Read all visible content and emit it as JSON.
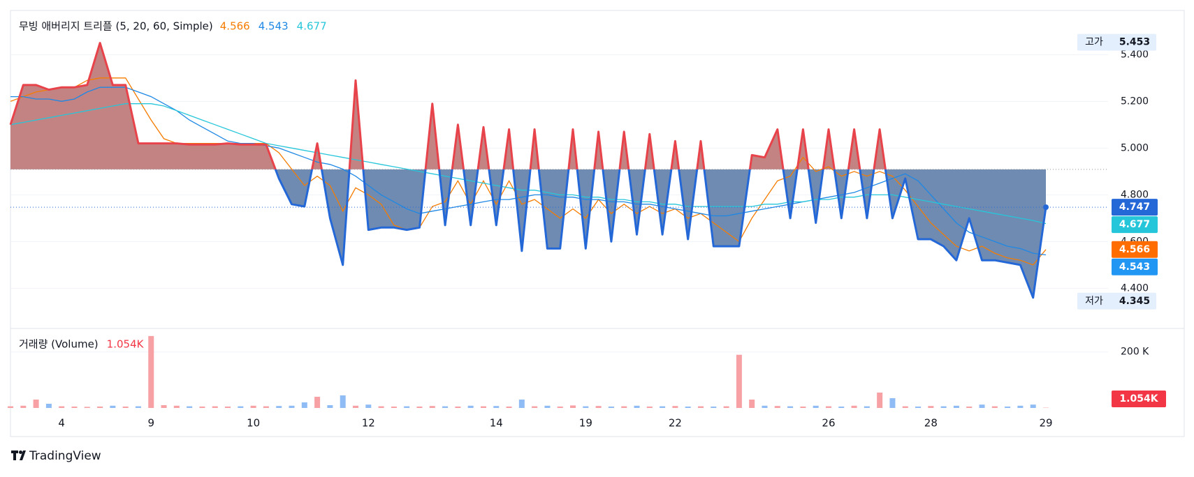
{
  "chart_data": {
    "type": "baseline",
    "categories": [
      null,
      null,
      null,
      null,
      "4",
      null,
      null,
      null,
      null,
      null,
      null,
      "9",
      null,
      null,
      null,
      null,
      null,
      null,
      null,
      "10",
      null,
      null,
      null,
      null,
      null,
      null,
      null,
      null,
      "12",
      null,
      null,
      null,
      null,
      null,
      null,
      null,
      null,
      null,
      "14",
      null,
      null,
      null,
      null,
      null,
      null,
      "19",
      null,
      null,
      null,
      null,
      null,
      null,
      "22",
      null,
      null,
      null,
      null,
      null,
      null,
      null,
      null,
      null,
      null,
      null,
      "26",
      null,
      null,
      null,
      null,
      null,
      null,
      null,
      "28",
      null,
      null,
      null,
      null,
      null,
      null,
      null,
      null,
      "29"
    ],
    "values": [
      5.1,
      5.27,
      5.27,
      5.25,
      5.26,
      5.26,
      5.27,
      5.45,
      5.27,
      5.27,
      5.02,
      5.02,
      5.02,
      5.02,
      5.015,
      5.015,
      5.015,
      5.02,
      5.015,
      5.015,
      5.015,
      4.87,
      4.76,
      4.75,
      5.02,
      4.7,
      4.5,
      5.29,
      4.65,
      4.66,
      4.66,
      4.65,
      4.66,
      5.19,
      4.67,
      5.1,
      4.67,
      5.09,
      4.67,
      5.08,
      4.56,
      5.08,
      4.57,
      4.57,
      5.08,
      4.57,
      5.07,
      4.6,
      5.07,
      4.63,
      5.06,
      4.63,
      5.03,
      4.61,
      5.03,
      4.58,
      4.58,
      4.58,
      4.97,
      4.96,
      5.08,
      4.7,
      5.08,
      4.68,
      5.08,
      4.7,
      5.08,
      4.7,
      5.08,
      4.7,
      4.87,
      4.61,
      4.61,
      4.58,
      4.52,
      4.7,
      4.52,
      4.52,
      4.51,
      4.5,
      4.36,
      4.747
    ],
    "baseline": 4.909,
    "line_up_color": "#e8434a",
    "line_down_color": "#2468d8",
    "fill_up_color": "#c38383",
    "fill_down_color": "#6f8bb1",
    "current_color": "#2468d8",
    "ylim": [
      4.234,
      5.586
    ],
    "yticks": [
      {
        "value": 4.4,
        "label": "4.400"
      },
      {
        "value": 4.6,
        "label": "4.600"
      },
      {
        "value": 4.8,
        "label": "4.800"
      },
      {
        "value": 5.0,
        "label": "5.000"
      },
      {
        "value": 5.2,
        "label": "5.200"
      },
      {
        "value": 5.4,
        "label": "5.400"
      }
    ],
    "grid": true,
    "high": {
      "label": "고가",
      "value": 5.453
    },
    "low": {
      "label": "저가",
      "value": 4.345
    },
    "ma": {
      "title": "무빙 애버리지 트리플 (5, 20, 60, Simple)",
      "series": [
        {
          "color": "#f57c00",
          "badge_color": "#ff6d00",
          "values": [
            5.2,
            5.22,
            5.24,
            5.25,
            5.26,
            5.26,
            5.29,
            5.3,
            5.3,
            5.3,
            5.21,
            5.12,
            5.04,
            5.02,
            5.02,
            5.02,
            5.02,
            5.02,
            5.02,
            5.02,
            5.02,
            4.98,
            4.91,
            4.84,
            4.88,
            4.84,
            4.73,
            4.83,
            4.8,
            4.76,
            4.67,
            4.65,
            4.66,
            4.75,
            4.77,
            4.86,
            4.76,
            4.86,
            4.76,
            4.86,
            4.76,
            4.78,
            4.74,
            4.7,
            4.74,
            4.7,
            4.78,
            4.72,
            4.76,
            4.72,
            4.75,
            4.72,
            4.74,
            4.7,
            4.72,
            4.68,
            4.64,
            4.6,
            4.7,
            4.78,
            4.86,
            4.88,
            4.96,
            4.9,
            4.92,
            4.88,
            4.9,
            4.88,
            4.9,
            4.88,
            4.82,
            4.75,
            4.68,
            4.63,
            4.58,
            4.56,
            4.58,
            4.55,
            4.53,
            4.52,
            4.5,
            4.566
          ]
        },
        {
          "color": "#1e88e5",
          "badge_color": "#2196f3",
          "values": [
            5.22,
            5.22,
            5.21,
            5.21,
            5.2,
            5.21,
            5.24,
            5.26,
            5.26,
            5.26,
            5.24,
            5.22,
            5.19,
            5.16,
            5.12,
            5.09,
            5.06,
            5.03,
            5.02,
            5.02,
            5.01,
            5.0,
            4.98,
            4.96,
            4.94,
            4.93,
            4.91,
            4.88,
            4.84,
            4.8,
            4.77,
            4.74,
            4.72,
            4.73,
            4.74,
            4.75,
            4.76,
            4.77,
            4.78,
            4.78,
            4.79,
            4.8,
            4.8,
            4.79,
            4.79,
            4.78,
            4.78,
            4.77,
            4.77,
            4.76,
            4.76,
            4.75,
            4.74,
            4.73,
            4.72,
            4.71,
            4.71,
            4.72,
            4.73,
            4.74,
            4.75,
            4.76,
            4.77,
            4.78,
            4.79,
            4.8,
            4.81,
            4.83,
            4.85,
            4.87,
            4.89,
            4.86,
            4.8,
            4.74,
            4.68,
            4.64,
            4.62,
            4.6,
            4.58,
            4.57,
            4.55,
            4.543
          ]
        },
        {
          "color": "#26c6da",
          "badge_color": "#26c6da",
          "values": [
            5.1,
            5.11,
            5.12,
            5.13,
            5.14,
            5.15,
            5.16,
            5.17,
            5.18,
            5.19,
            5.19,
            5.19,
            5.18,
            5.16,
            5.14,
            5.12,
            5.1,
            5.08,
            5.06,
            5.04,
            5.02,
            5.01,
            5.0,
            4.99,
            4.98,
            4.97,
            4.96,
            4.95,
            4.94,
            4.93,
            4.92,
            4.91,
            4.9,
            4.89,
            4.88,
            4.87,
            4.86,
            4.85,
            4.84,
            4.83,
            4.82,
            4.82,
            4.81,
            4.8,
            4.8,
            4.79,
            4.79,
            4.78,
            4.78,
            4.77,
            4.77,
            4.76,
            4.76,
            4.75,
            4.75,
            4.75,
            4.75,
            4.75,
            4.75,
            4.76,
            4.76,
            4.77,
            4.77,
            4.78,
            4.78,
            4.79,
            4.79,
            4.8,
            4.8,
            4.8,
            4.79,
            4.78,
            4.77,
            4.76,
            4.75,
            4.74,
            4.73,
            4.72,
            4.71,
            4.7,
            4.69,
            4.677
          ]
        }
      ]
    },
    "volume": {
      "title": "거래량 (Volume)",
      "values": [
        6000,
        8000,
        30000,
        15000,
        6000,
        5000,
        4000,
        5000,
        8000,
        5000,
        6000,
        257000,
        10000,
        8000,
        6000,
        5000,
        6000,
        5000,
        6000,
        8000,
        6000,
        7000,
        8000,
        20000,
        40000,
        10000,
        45000,
        8000,
        12000,
        6000,
        5000,
        6000,
        5000,
        7000,
        6000,
        5000,
        8000,
        6000,
        7000,
        5000,
        30000,
        6000,
        8000,
        5000,
        9000,
        6000,
        7000,
        5000,
        6000,
        8000,
        5000,
        6000,
        7000,
        5000,
        6000,
        5000,
        6000,
        190000,
        30000,
        8000,
        7000,
        6000,
        5000,
        8000,
        6000,
        5000,
        8000,
        6000,
        55000,
        35000,
        6000,
        5000,
        7000,
        6000,
        8000,
        5000,
        12000,
        6000,
        5000,
        8000,
        12000,
        1054
      ],
      "value_labels": [
        null,
        null,
        null,
        null,
        null,
        null,
        null,
        null,
        null,
        null,
        null,
        null,
        null,
        null,
        null,
        null,
        null,
        null,
        null,
        null,
        null,
        null,
        null,
        null,
        null,
        null,
        null,
        null,
        null,
        null,
        null,
        null,
        null,
        null,
        null,
        null,
        null,
        null,
        null,
        null,
        null,
        null,
        null,
        null,
        null,
        null,
        null,
        null,
        null,
        null,
        null,
        null,
        null,
        null,
        null,
        null,
        null,
        null,
        null,
        null,
        null,
        null,
        null,
        null,
        null,
        null,
        null,
        null,
        null,
        null,
        null,
        null,
        null,
        null,
        null,
        null,
        null,
        null,
        null,
        null,
        null,
        "1.054K"
      ],
      "ylim": [
        0,
        284000
      ],
      "yticks": [
        {
          "value": 200000,
          "label": "200 K"
        }
      ],
      "up_color": "#f7a1a5",
      "down_color": "#8fbcf5",
      "label_color": "#f23645"
    },
    "watermark": "TradingView"
  }
}
